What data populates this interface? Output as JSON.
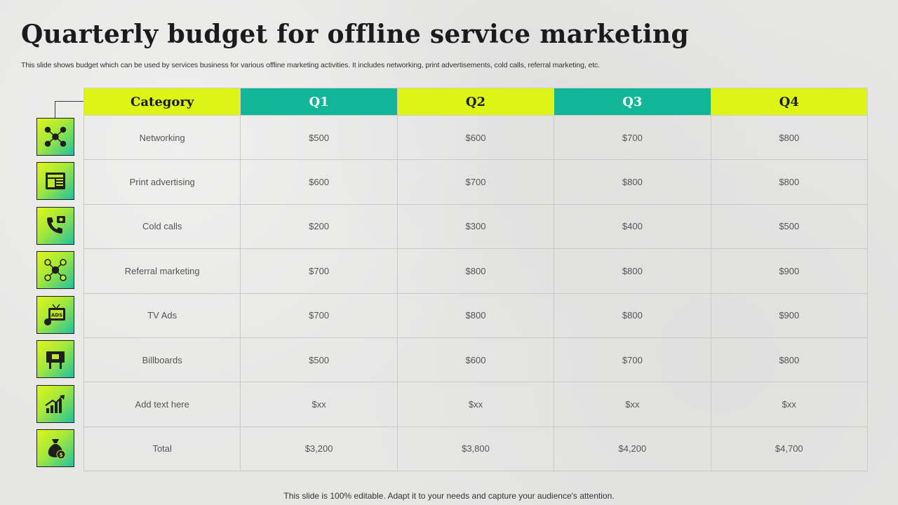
{
  "title": "Quarterly budget for offline service marketing",
  "subtitle": "This slide shows budget which can be used by services business for various offline marketing  activities. It includes networking, print advertisements, cold calls, referral marketing, etc.",
  "table": {
    "headers": [
      "Category",
      "Q1",
      "Q2",
      "Q3",
      "Q4"
    ],
    "rows": [
      {
        "category": "Networking",
        "q1": "$500",
        "q2": "$600",
        "q3": "$700",
        "q4": "$800",
        "icon": "network-people-icon"
      },
      {
        "category": "Print advertising",
        "q1": "$600",
        "q2": "$700",
        "q3": "$800",
        "q4": "$800",
        "icon": "newspaper-icon"
      },
      {
        "category": "Cold calls",
        "q1": "$200",
        "q2": "$300",
        "q3": "$400",
        "q4": "$500",
        "icon": "phone-call-icon"
      },
      {
        "category": "Referral marketing",
        "q1": "$700",
        "q2": "$800",
        "q3": "$800",
        "q4": "$900",
        "icon": "referral-network-icon"
      },
      {
        "category": "TV Ads",
        "q1": "$700",
        "q2": "$800",
        "q3": "$800",
        "q4": "$900",
        "icon": "tv-ads-icon"
      },
      {
        "category": "Billboards",
        "q1": "$500",
        "q2": "$600",
        "q3": "$700",
        "q4": "$800",
        "icon": "billboard-icon"
      },
      {
        "category": "Add text here",
        "q1": "$xx",
        "q2": "$xx",
        "q3": "$xx",
        "q4": "$xx",
        "icon": "growth-chart-icon"
      },
      {
        "category": "Total",
        "q1": "$3,200",
        "q2": "$3,800",
        "q3": "$4,200",
        "q4": "$4,700",
        "icon": "money-bag-icon"
      }
    ]
  },
  "colors": {
    "lime": "#dcf514",
    "teal": "#11b597"
  },
  "footer": "This slide is 100% editable. Adapt it to your needs and capture your audience's attention."
}
